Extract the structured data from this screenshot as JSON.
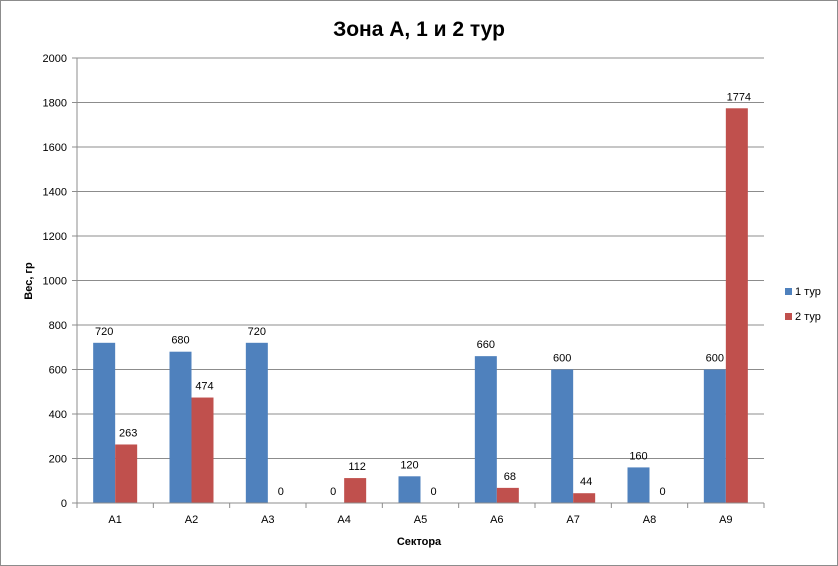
{
  "chart_data": {
    "type": "bar",
    "title": "Зона А, 1 и 2 тур",
    "xlabel": "Сектора",
    "ylabel": "Вес, гр",
    "categories": [
      "А1",
      "А2",
      "А3",
      "А4",
      "А5",
      "А6",
      "А7",
      "А8",
      "А9"
    ],
    "series": [
      {
        "name": "1 тур",
        "color": "#4f81bd",
        "values": [
          720,
          680,
          720,
          0,
          120,
          660,
          600,
          160,
          600
        ]
      },
      {
        "name": "2 тур",
        "color": "#c0504d",
        "values": [
          263,
          474,
          0,
          112,
          0,
          68,
          44,
          0,
          1774
        ]
      }
    ],
    "ylim": [
      0,
      2000
    ],
    "yticks": [
      0,
      200,
      400,
      600,
      800,
      1000,
      1200,
      1400,
      1600,
      1800,
      2000
    ],
    "grid": true,
    "legend": "right",
    "data_labels": true
  }
}
